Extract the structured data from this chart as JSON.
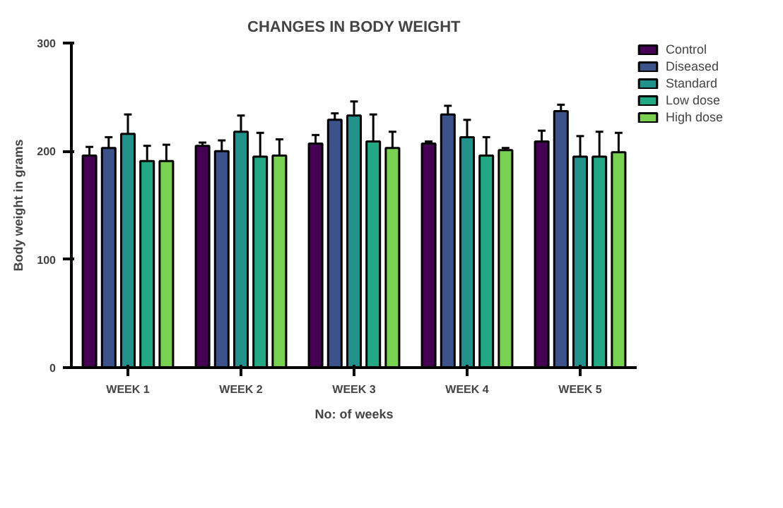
{
  "chart_data": {
    "type": "bar",
    "title": "CHANGES IN BODY WEIGHT",
    "xlabel": "No: of weeks",
    "ylabel": "Body weight in grams",
    "categories": [
      "WEEK 1",
      "WEEK 2",
      "WEEK 3",
      "WEEK 4",
      "WEEK 5"
    ],
    "series": [
      {
        "name": "Control",
        "color": "#440154",
        "values": [
          196,
          205,
          207,
          207,
          209
        ],
        "errors": [
          [
            196,
            204
          ],
          [
            205,
            208
          ],
          [
            207,
            215
          ],
          [
            207,
            209
          ],
          [
            209,
            219
          ]
        ]
      },
      {
        "name": "Diseased",
        "color": "#3b528b",
        "values": [
          203,
          200,
          229,
          234,
          237
        ],
        "errors": [
          [
            203,
            213
          ],
          [
            200,
            210
          ],
          [
            229,
            235
          ],
          [
            234,
            242
          ],
          [
            237,
            243
          ]
        ]
      },
      {
        "name": "Standard",
        "color": "#21918c",
        "values": [
          216,
          218,
          233,
          213,
          195
        ],
        "errors": [
          [
            216,
            234
          ],
          [
            218,
            233
          ],
          [
            233,
            246
          ],
          [
            213,
            229
          ],
          [
            195,
            214
          ]
        ]
      },
      {
        "name": "Low dose",
        "color": "#22a884",
        "values": [
          191,
          195,
          209,
          196,
          195
        ],
        "errors": [
          [
            191,
            205
          ],
          [
            195,
            217
          ],
          [
            209,
            234
          ],
          [
            196,
            213
          ],
          [
            195,
            218
          ]
        ]
      },
      {
        "name": "High dose",
        "color": "#7ad151",
        "values": [
          191,
          196,
          203,
          201,
          199
        ],
        "errors": [
          [
            191,
            206
          ],
          [
            196,
            211
          ],
          [
            203,
            218
          ],
          [
            201,
            203
          ],
          [
            199,
            217
          ]
        ]
      }
    ],
    "ylim": [
      0,
      300
    ],
    "yticks": [
      0,
      100,
      200,
      300
    ],
    "grid": false,
    "legend": "top right"
  }
}
